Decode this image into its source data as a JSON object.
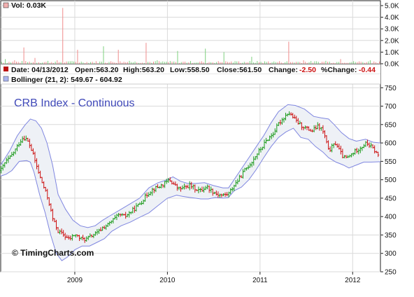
{
  "vol_panel": {
    "label": "Vol: 0.03K",
    "ticks": [
      "5.0K",
      "4.0K",
      "3.0K",
      "2.0K",
      "1.0K",
      "0.0K"
    ],
    "tick_values": [
      5000,
      4000,
      3000,
      2000,
      1000,
      0
    ]
  },
  "info_bar": {
    "date_label": "Date: 04/13/2012",
    "open_label": "Open:563.20",
    "high_label": "High:563.20",
    "low_label": "Low:558.50",
    "close_label": "Close:561.50",
    "change_label": "Change:",
    "change_value": "-2.50",
    "pct_label": "%Change:",
    "pct_value": "-0.44"
  },
  "bollinger_label": "Bollinger (21, 2): 549.67 - 604.92",
  "title": "CRB Index - Continuous",
  "copyright": "© TimingCharts.com",
  "colors": {
    "up": "#1a9a1a",
    "down": "#cc1111",
    "band_line": "#7f86e0",
    "band_fill": "#eef1f6",
    "grid": "#d9d9d9",
    "date_swatch": "#bb1111",
    "boll_swatch": "#aab4ee",
    "vol_swatch": "#f2b0b0"
  },
  "chart_data": {
    "type": "candlestick",
    "y_ticks": [
      "750",
      "700",
      "650",
      "600",
      "550",
      "500",
      "450",
      "400",
      "350",
      "300",
      "250"
    ],
    "y_tick_values": [
      750,
      700,
      650,
      600,
      550,
      500,
      450,
      400,
      350,
      300,
      250
    ],
    "ylim": [
      250,
      760
    ],
    "x_ticks": [
      "2009",
      "2010",
      "2011",
      "2012"
    ],
    "x_tick_values": [
      2009.0,
      2010.0,
      2011.0,
      2012.0
    ],
    "xlim": [
      2008.2,
      2012.3
    ],
    "price_path": [
      [
        2008.2,
        525
      ],
      [
        2008.25,
        548
      ],
      [
        2008.3,
        560
      ],
      [
        2008.35,
        578
      ],
      [
        2008.4,
        600
      ],
      [
        2008.44,
        615
      ],
      [
        2008.48,
        610
      ],
      [
        2008.52,
        590
      ],
      [
        2008.56,
        560
      ],
      [
        2008.62,
        510
      ],
      [
        2008.68,
        470
      ],
      [
        2008.72,
        440
      ],
      [
        2008.76,
        395
      ],
      [
        2008.82,
        360
      ],
      [
        2008.88,
        350
      ],
      [
        2008.94,
        338
      ],
      [
        2009.0,
        352
      ],
      [
        2009.06,
        340
      ],
      [
        2009.12,
        338
      ],
      [
        2009.18,
        348
      ],
      [
        2009.24,
        355
      ],
      [
        2009.3,
        370
      ],
      [
        2009.36,
        378
      ],
      [
        2009.42,
        392
      ],
      [
        2009.48,
        405
      ],
      [
        2009.54,
        400
      ],
      [
        2009.6,
        412
      ],
      [
        2009.66,
        425
      ],
      [
        2009.72,
        440
      ],
      [
        2009.78,
        460
      ],
      [
        2009.84,
        474
      ],
      [
        2009.9,
        480
      ],
      [
        2009.96,
        488
      ],
      [
        2010.02,
        500
      ],
      [
        2010.06,
        490
      ],
      [
        2010.12,
        475
      ],
      [
        2010.18,
        478
      ],
      [
        2010.24,
        485
      ],
      [
        2010.3,
        476
      ],
      [
        2010.36,
        470
      ],
      [
        2010.42,
        482
      ],
      [
        2010.48,
        470
      ],
      [
        2010.54,
        460
      ],
      [
        2010.6,
        458
      ],
      [
        2010.66,
        462
      ],
      [
        2010.72,
        485
      ],
      [
        2010.78,
        505
      ],
      [
        2010.84,
        528
      ],
      [
        2010.9,
        545
      ],
      [
        2010.96,
        568
      ],
      [
        2011.02,
        588
      ],
      [
        2011.08,
        610
      ],
      [
        2011.14,
        625
      ],
      [
        2011.2,
        652
      ],
      [
        2011.26,
        670
      ],
      [
        2011.3,
        682
      ],
      [
        2011.34,
        675
      ],
      [
        2011.38,
        662
      ],
      [
        2011.44,
        648
      ],
      [
        2011.5,
        640
      ],
      [
        2011.56,
        632
      ],
      [
        2011.62,
        645
      ],
      [
        2011.66,
        640
      ],
      [
        2011.7,
        618
      ],
      [
        2011.74,
        578
      ],
      [
        2011.78,
        590
      ],
      [
        2011.82,
        600
      ],
      [
        2011.86,
        578
      ],
      [
        2011.9,
        560
      ],
      [
        2011.95,
        560
      ],
      [
        2012.0,
        572
      ],
      [
        2012.05,
        582
      ],
      [
        2012.1,
        590
      ],
      [
        2012.15,
        600
      ],
      [
        2012.2,
        590
      ],
      [
        2012.25,
        575
      ],
      [
        2012.29,
        561
      ]
    ],
    "bollinger": {
      "upper": [
        [
          2008.2,
          540
        ],
        [
          2008.3,
          580
        ],
        [
          2008.38,
          620
        ],
        [
          2008.46,
          648
        ],
        [
          2008.52,
          665
        ],
        [
          2008.58,
          660
        ],
        [
          2008.64,
          640
        ],
        [
          2008.7,
          600
        ],
        [
          2008.76,
          540
        ],
        [
          2008.82,
          460
        ],
        [
          2008.9,
          420
        ],
        [
          2008.98,
          390
        ],
        [
          2009.06,
          375
        ],
        [
          2009.14,
          370
        ],
        [
          2009.22,
          375
        ],
        [
          2009.3,
          390
        ],
        [
          2009.4,
          405
        ],
        [
          2009.5,
          420
        ],
        [
          2009.6,
          435
        ],
        [
          2009.7,
          450
        ],
        [
          2009.8,
          478
        ],
        [
          2009.9,
          492
        ],
        [
          2010.0,
          500
        ],
        [
          2010.06,
          508
        ],
        [
          2010.14,
          496
        ],
        [
          2010.22,
          490
        ],
        [
          2010.3,
          490
        ],
        [
          2010.4,
          492
        ],
        [
          2010.5,
          484
        ],
        [
          2010.6,
          478
        ],
        [
          2010.66,
          478
        ],
        [
          2010.72,
          500
        ],
        [
          2010.8,
          530
        ],
        [
          2010.88,
          560
        ],
        [
          2010.96,
          590
        ],
        [
          2011.04,
          620
        ],
        [
          2011.12,
          655
        ],
        [
          2011.2,
          685
        ],
        [
          2011.3,
          704
        ],
        [
          2011.38,
          702
        ],
        [
          2011.48,
          692
        ],
        [
          2011.58,
          672
        ],
        [
          2011.66,
          668
        ],
        [
          2011.74,
          665
        ],
        [
          2011.8,
          650
        ],
        [
          2011.88,
          628
        ],
        [
          2011.96,
          612
        ],
        [
          2012.04,
          605
        ],
        [
          2012.14,
          610
        ],
        [
          2012.22,
          602
        ],
        [
          2012.3,
          600
        ]
      ],
      "lower": [
        [
          2008.2,
          510
        ],
        [
          2008.26,
          515
        ],
        [
          2008.32,
          525
        ],
        [
          2008.4,
          550
        ],
        [
          2008.48,
          552
        ],
        [
          2008.52,
          548
        ],
        [
          2008.56,
          520
        ],
        [
          2008.62,
          460
        ],
        [
          2008.68,
          410
        ],
        [
          2008.74,
          350
        ],
        [
          2008.8,
          300
        ],
        [
          2008.86,
          280
        ],
        [
          2008.92,
          290
        ],
        [
          2009.0,
          310
        ],
        [
          2009.08,
          320
        ],
        [
          2009.16,
          320
        ],
        [
          2009.24,
          330
        ],
        [
          2009.32,
          340
        ],
        [
          2009.4,
          360
        ],
        [
          2009.5,
          375
        ],
        [
          2009.6,
          385
        ],
        [
          2009.7,
          398
        ],
        [
          2009.8,
          410
        ],
        [
          2009.9,
          430
        ],
        [
          2010.0,
          450
        ],
        [
          2010.1,
          458
        ],
        [
          2010.16,
          455
        ],
        [
          2010.24,
          452
        ],
        [
          2010.3,
          450
        ],
        [
          2010.36,
          448
        ],
        [
          2010.44,
          448
        ],
        [
          2010.52,
          452
        ],
        [
          2010.6,
          450
        ],
        [
          2010.66,
          452
        ],
        [
          2010.72,
          470
        ],
        [
          2010.8,
          480
        ],
        [
          2010.88,
          500
        ],
        [
          2010.96,
          528
        ],
        [
          2011.04,
          560
        ],
        [
          2011.12,
          590
        ],
        [
          2011.2,
          615
        ],
        [
          2011.28,
          630
        ],
        [
          2011.36,
          640
        ],
        [
          2011.44,
          615
        ],
        [
          2011.52,
          610
        ],
        [
          2011.6,
          590
        ],
        [
          2011.68,
          575
        ],
        [
          2011.74,
          560
        ],
        [
          2011.82,
          548
        ],
        [
          2011.9,
          540
        ],
        [
          2011.96,
          532
        ],
        [
          2012.04,
          540
        ],
        [
          2012.12,
          548
        ],
        [
          2012.2,
          548
        ],
        [
          2012.3,
          549
        ]
      ]
    },
    "volume": [
      [
        2008.25,
        400
      ],
      [
        2008.35,
        300
      ],
      [
        2008.44,
        1400
      ],
      [
        2008.56,
        500
      ],
      [
        2008.7,
        250
      ],
      [
        2008.8,
        300
      ],
      [
        2008.86,
        4800
      ],
      [
        2008.92,
        200
      ],
      [
        2009.02,
        1200
      ],
      [
        2009.12,
        150
      ],
      [
        2009.3,
        1500
      ],
      [
        2009.46,
        1200
      ],
      [
        2009.58,
        250
      ],
      [
        2009.76,
        1800
      ],
      [
        2009.88,
        300
      ],
      [
        2010.1,
        1100
      ],
      [
        2010.4,
        1300
      ],
      [
        2010.6,
        1000
      ],
      [
        2010.74,
        200
      ],
      [
        2010.9,
        600
      ],
      [
        2011.08,
        200
      ],
      [
        2011.3,
        1900
      ],
      [
        2011.46,
        300
      ],
      [
        2011.7,
        250
      ],
      [
        2011.86,
        400
      ],
      [
        2012.02,
        150
      ],
      [
        2012.18,
        300
      ]
    ]
  }
}
